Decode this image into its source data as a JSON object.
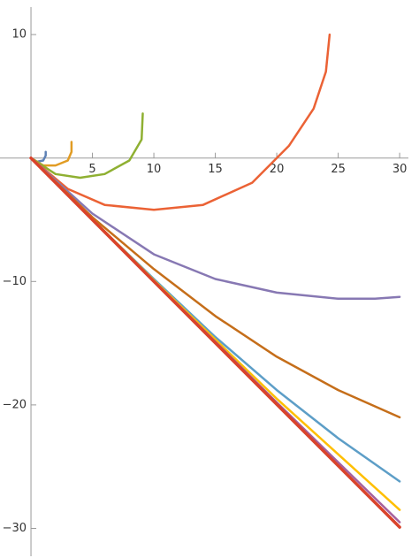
{
  "chart_data": {
    "type": "line",
    "xlim": [
      -2.52,
      31
    ],
    "ylim": [
      12.8,
      -32.4
    ],
    "xticks": [
      5,
      10,
      15,
      20,
      25,
      30
    ],
    "yticks": [
      10,
      {
        "value": -10,
        "label": "−10"
      },
      {
        "value": -20,
        "label": "−20"
      },
      {
        "value": -30,
        "label": "−30"
      }
    ],
    "series": [
      {
        "color": "#5E81B5",
        "x": [
          0,
          0.5,
          1,
          1.2,
          1.2
        ],
        "values": [
          0,
          -0.3,
          -0.2,
          0.2,
          0.5
        ]
      },
      {
        "color": "#E19C24",
        "x": [
          0,
          1,
          2,
          3,
          3.3,
          3.3
        ],
        "values": [
          0,
          -0.6,
          -0.6,
          -0.2,
          0.5,
          1.3
        ]
      },
      {
        "color": "#8FB032",
        "x": [
          0,
          2,
          4,
          6,
          8,
          9,
          9.1
        ],
        "values": [
          0,
          -1.3,
          -1.6,
          -1.3,
          -0.2,
          1.5,
          3.6
        ]
      },
      {
        "color": "#EB6235",
        "x": [
          0,
          3,
          6,
          10,
          14,
          18,
          21,
          23,
          24,
          24.3
        ],
        "values": [
          0,
          -2.5,
          -3.8,
          -4.2,
          -3.8,
          -2,
          1,
          4,
          7,
          10
        ]
      },
      {
        "color": "#8778B3",
        "x": [
          0,
          5,
          10,
          15,
          20,
          25,
          28,
          30
        ],
        "values": [
          0,
          -4.5,
          -7.8,
          -9.8,
          -10.9,
          -11.4,
          -11.4,
          -11.25
        ]
      },
      {
        "color": "#C56E1A",
        "x": [
          0,
          5,
          10,
          15,
          20,
          25,
          30
        ],
        "values": [
          0,
          -4.8,
          -9,
          -12.8,
          -16.1,
          -18.8,
          -21
        ]
      },
      {
        "color": "#5D9EC7",
        "x": [
          0,
          5,
          10,
          15,
          20,
          25,
          30
        ],
        "values": [
          0,
          -5,
          -9.8,
          -14.5,
          -18.8,
          -22.7,
          -26.2
        ]
      },
      {
        "color": "#FFBF00",
        "x": [
          0,
          10,
          20,
          30
        ],
        "values": [
          0,
          -9.9,
          -19.5,
          -28.5
        ]
      },
      {
        "color": "#A5609D",
        "x": [
          0,
          10,
          20,
          30
        ],
        "values": [
          0,
          -9.95,
          -19.8,
          -29.5
        ]
      },
      {
        "color": "#D9432B",
        "x": [
          0,
          10,
          20,
          30
        ],
        "values": [
          0,
          -10,
          -19.95,
          -29.9
        ]
      }
    ]
  }
}
